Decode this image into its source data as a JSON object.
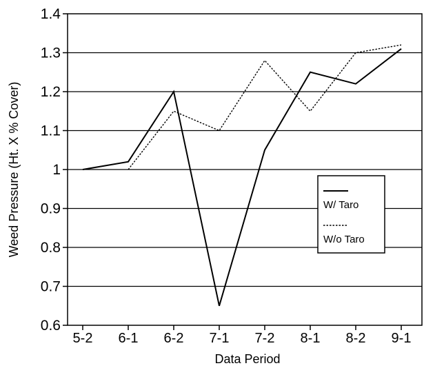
{
  "chart_data": {
    "type": "line",
    "categories": [
      "5-2",
      "6-1",
      "6-2",
      "7-1",
      "7-2",
      "8-1",
      "8-2",
      "9-1"
    ],
    "series": [
      {
        "name": "W/ Taro",
        "style": "solid",
        "color": "#000000",
        "values": [
          1.0,
          1.02,
          1.2,
          0.65,
          1.05,
          1.25,
          1.22,
          1.31
        ]
      },
      {
        "name": "W/o Taro",
        "style": "dotted",
        "color": "#000000",
        "values": [
          null,
          1.0,
          1.15,
          1.1,
          1.28,
          1.15,
          1.3,
          1.32
        ]
      }
    ],
    "xlabel": "Data Period",
    "ylabel": "Weed Pressure (Ht. X % Cover)",
    "ylim": [
      0.6,
      1.4
    ],
    "yticks": [
      "0.6",
      "0.7",
      "0.8",
      "0.9",
      "1",
      "1.1",
      "1.2",
      "1.3",
      "1.4"
    ],
    "grid": "horizontal",
    "legend_position": "right-middle"
  }
}
